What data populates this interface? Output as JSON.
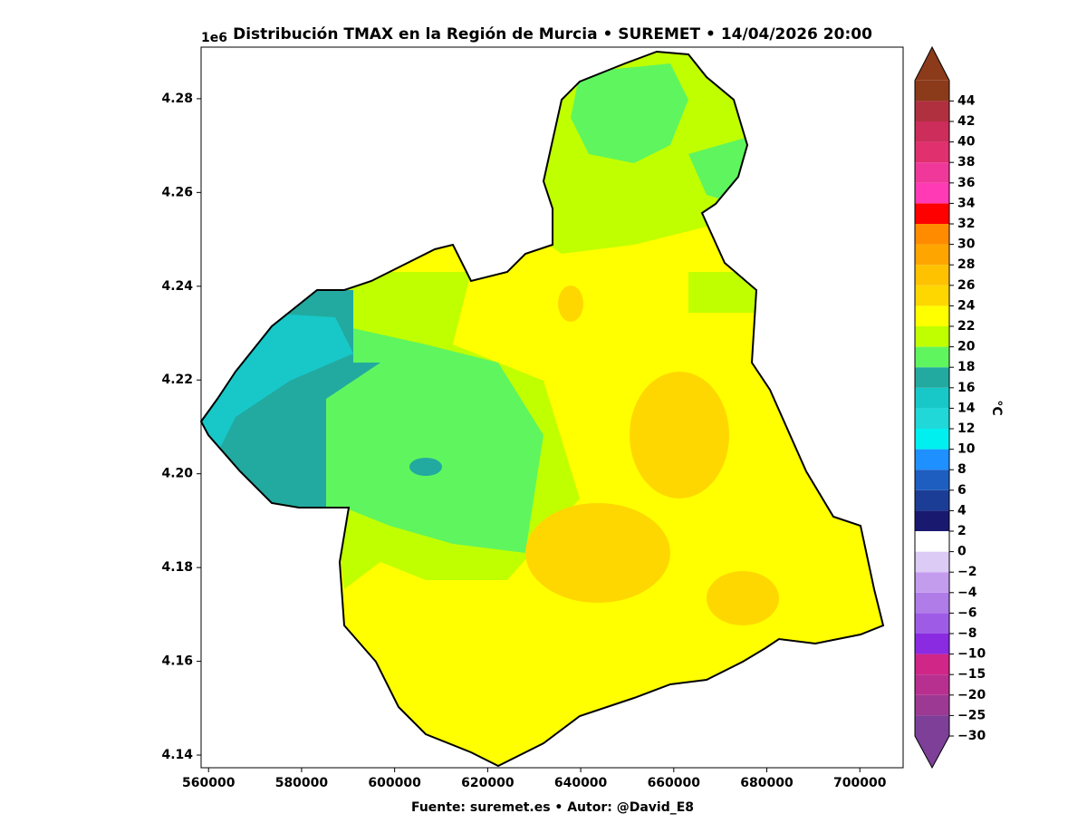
{
  "title": "Distribución TMAX en la Región de Murcia • SUREMET • 14/04/2026 20:00",
  "y_offset_label": "1e6",
  "footer": "Fuente: suremet.es   •   Autor: @David_E8",
  "map": {
    "xlim": [
      558400,
      709300
    ],
    "ylim": [
      4137300,
      4291000
    ],
    "xticks": [
      560000,
      580000,
      600000,
      620000,
      640000,
      660000,
      680000,
      700000
    ],
    "yticks": [
      {
        "value": 4140000,
        "label": "4.14"
      },
      {
        "value": 4160000,
        "label": "4.16"
      },
      {
        "value": 4180000,
        "label": "4.18"
      },
      {
        "value": 4200000,
        "label": "4.20"
      },
      {
        "value": 4220000,
        "label": "4.22"
      },
      {
        "value": 4240000,
        "label": "4.24"
      },
      {
        "value": 4260000,
        "label": "4.26"
      },
      {
        "value": 4280000,
        "label": "4.28"
      }
    ]
  },
  "colorbar": {
    "label": "°C",
    "ticks": [
      {
        "value": -30,
        "label": "−30"
      },
      {
        "value": -25,
        "label": "−25"
      },
      {
        "value": -20,
        "label": "−20"
      },
      {
        "value": -15,
        "label": "−15"
      },
      {
        "value": -10,
        "label": "−10"
      },
      {
        "value": -8,
        "label": "−8"
      },
      {
        "value": -6,
        "label": "−6"
      },
      {
        "value": -4,
        "label": "−4"
      },
      {
        "value": -2,
        "label": "−2"
      },
      0,
      2,
      4,
      6,
      8,
      10,
      12,
      14,
      16,
      18,
      20,
      22,
      24,
      26,
      28,
      30,
      32,
      34,
      36,
      38,
      40,
      42,
      44
    ],
    "colors": [
      "#7d3f98",
      "#9c3a93",
      "#b8308f",
      "#cf2688",
      "#8a2be2",
      "#9e5ce6",
      "#b07ce8",
      "#c49cee",
      "#dccbf5",
      "#ffffff",
      "#191970",
      "#1c3d96",
      "#1e5ec0",
      "#1e90ff",
      "#00f0f0",
      "#20d8d8",
      "#18c8c8",
      "#22aaa0",
      "#5ff55f",
      "#c0ff00",
      "#ffff00",
      "#ffd700",
      "#ffc200",
      "#ffa500",
      "#ff8c00",
      "#ff0000",
      "#ff3ab4",
      "#f0389a",
      "#e0306e",
      "#cc2d5a",
      "#b03040",
      "#8b3a1a"
    ],
    "under_color": "#7d3f98",
    "over_color": "#8b3a1a"
  }
}
